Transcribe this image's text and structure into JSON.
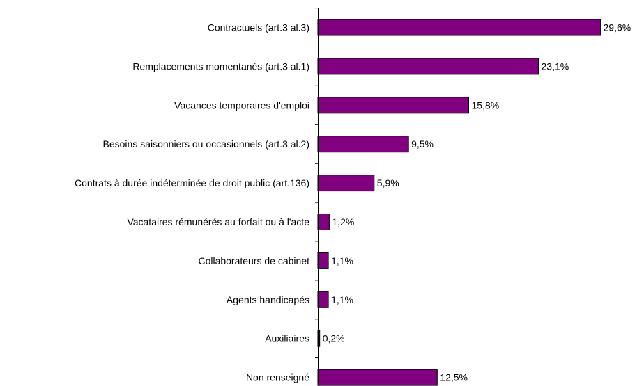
{
  "chart_data": {
    "type": "bar",
    "orientation": "horizontal",
    "categories": [
      "Contractuels (art.3 al.3)",
      "Remplacements momentanés (art.3 al.1)",
      "Vacances temporaires d'emploi",
      "Besoins saisonniers ou occasionnels (art.3 al.2)",
      "Contrats à durée indéterminée de droit public (art.136)",
      "Vacataires rémunérés au forfait ou à l'acte",
      "Collaborateurs de cabinet",
      "Agents handicapés",
      "Auxiliaires",
      "Non renseigné"
    ],
    "values": [
      29.6,
      23.1,
      15.8,
      9.5,
      5.9,
      1.2,
      1.1,
      1.1,
      0.2,
      12.5
    ],
    "value_labels": [
      "29,6%",
      "23,1%",
      "15,8%",
      "9,5%",
      "5,9%",
      "1,2%",
      "1,1%",
      "1,1%",
      "0,2%",
      "12,5%"
    ],
    "title": "",
    "xlabel": "",
    "ylabel": "",
    "xlim": [
      0,
      30
    ],
    "grid": false,
    "legend": "none",
    "bar_color": "#800080"
  }
}
